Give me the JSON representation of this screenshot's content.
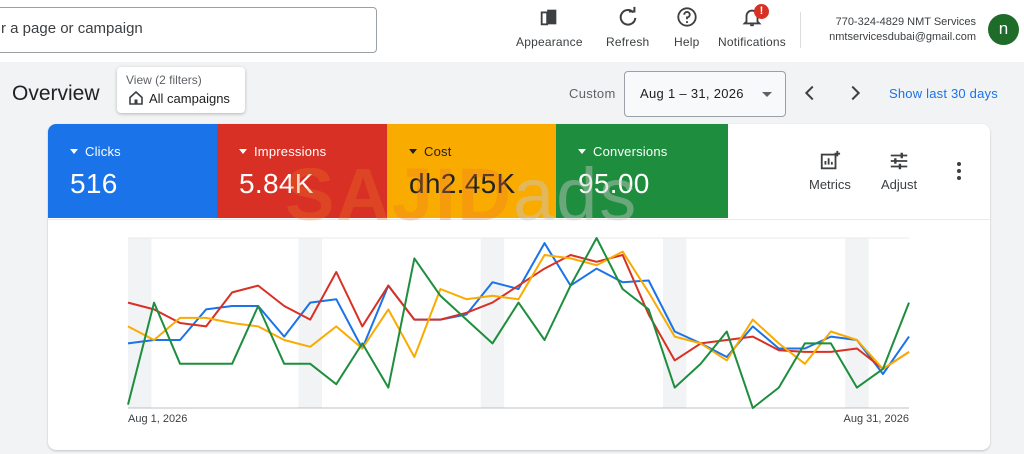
{
  "search": {
    "placeholder": "r a page or campaign"
  },
  "toolbar": {
    "appearance": "Appearance",
    "refresh": "Refresh",
    "help": "Help",
    "notifications": "Notifications",
    "notification_badge": "!"
  },
  "account": {
    "phone_name": "770-324-4829 NMT Services",
    "email": "nmtservicesdubai@gmail.com",
    "avatar_letter": "n"
  },
  "overview": {
    "title": "Overview",
    "filter_line1": "View (2 filters)",
    "filter_line2": "All campaigns",
    "custom_label": "Custom",
    "date_range": "Aug 1 – 31, 2026",
    "show_last": "Show last 30 days"
  },
  "metrics": [
    {
      "name": "Clicks",
      "value": "516",
      "color": "#1a73e8"
    },
    {
      "name": "Impressions",
      "value": "5.84K",
      "color": "#d93025"
    },
    {
      "name": "Cost",
      "value": "dh2.45K",
      "color": "#f9ab00"
    },
    {
      "name": "Conversions",
      "value": "95.00",
      "color": "#1e8e3e"
    }
  ],
  "card_tools": {
    "metrics": "Metrics",
    "adjust": "Adjust"
  },
  "watermark": {
    "part1": "SAJID",
    "part2": "ads"
  },
  "chart_data": {
    "type": "line",
    "x_start_label": "Aug 1, 2026",
    "x_end_label": "Aug 31, 2026",
    "x": [
      1,
      2,
      3,
      4,
      5,
      6,
      7,
      8,
      9,
      10,
      11,
      12,
      13,
      14,
      15,
      16,
      17,
      18,
      19,
      20,
      21,
      22,
      23,
      24,
      25,
      26,
      27,
      28,
      29,
      30,
      31
    ],
    "ylim": [
      0,
      100
    ],
    "grid": true,
    "series": [
      {
        "color": "#1a73e8",
        "values": [
          38,
          40,
          40,
          58,
          60,
          60,
          42,
          62,
          64,
          35,
          72,
          52,
          52,
          55,
          74,
          70,
          97,
          72,
          82,
          74,
          75,
          45,
          38,
          30,
          48,
          35,
          35,
          42,
          40,
          20,
          42
        ]
      },
      {
        "color": "#d93025",
        "values": [
          62,
          58,
          50,
          48,
          68,
          72,
          60,
          52,
          80,
          48,
          72,
          52,
          52,
          56,
          62,
          72,
          82,
          90,
          86,
          90,
          55,
          28,
          38,
          40,
          42,
          34,
          33,
          33,
          35,
          23,
          33
        ]
      },
      {
        "color": "#f9ab00",
        "values": [
          48,
          40,
          53,
          53,
          50,
          48,
          40,
          36,
          48,
          35,
          58,
          30,
          70,
          64,
          66,
          64,
          90,
          88,
          84,
          92,
          68,
          42,
          38,
          28,
          52,
          38,
          26,
          45,
          40,
          23,
          33
        ]
      },
      {
        "color": "#1e8e3e",
        "values": [
          2,
          62,
          26,
          26,
          26,
          60,
          26,
          26,
          14,
          38,
          12,
          88,
          66,
          52,
          38,
          62,
          40,
          72,
          100,
          70,
          58,
          12,
          26,
          45,
          0,
          12,
          38,
          38,
          12,
          23,
          62
        ]
      }
    ],
    "shaded_columns": [
      1,
      8,
      15,
      22,
      29
    ]
  }
}
